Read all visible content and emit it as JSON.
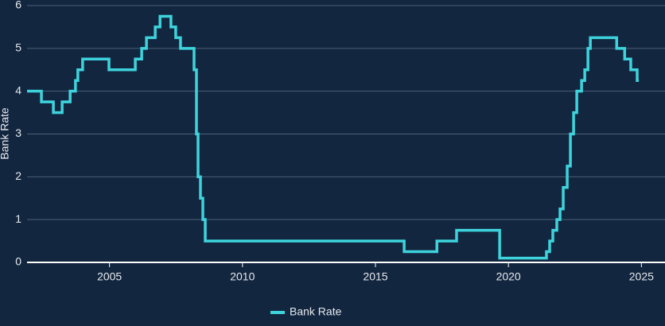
{
  "chart_data": {
    "type": "line",
    "step": "after",
    "y_label": "Bank Rate",
    "xlim": [
      2001.9,
      2024.9
    ],
    "xticks": [
      2005,
      2010,
      2015,
      2020,
      2025
    ],
    "ylim": [
      0,
      6
    ],
    "yticks": [
      0,
      1,
      2,
      3,
      4,
      5,
      6
    ],
    "grid": true,
    "legend": "bottom",
    "series": [
      {
        "name": "Bank Rate",
        "color": "#3dd3dc",
        "x": [
          2001.9,
          2002.44,
          2002.89,
          2003.22,
          2003.52,
          2003.72,
          2003.81,
          2003.99,
          2004.98,
          2005.97,
          2006.21,
          2006.39,
          2006.72,
          2006.9,
          2007.31,
          2007.49,
          2007.67,
          2008.18,
          2008.27,
          2008.33,
          2008.42,
          2008.51,
          2008.6,
          2016.08,
          2017.31,
          2018.05,
          2019.67,
          2021.43,
          2021.55,
          2021.67,
          2021.82,
          2021.94,
          2022.06,
          2022.21,
          2022.33,
          2022.45,
          2022.57,
          2022.75,
          2022.87,
          2022.99,
          2023.08,
          2024.07,
          2024.37,
          2024.6,
          2024.84,
          2024.9
        ],
        "values": [
          4.0,
          3.75,
          3.5,
          3.75,
          4.0,
          4.25,
          4.5,
          4.75,
          4.5,
          4.75,
          5.0,
          5.25,
          5.5,
          5.75,
          5.5,
          5.25,
          5.0,
          4.5,
          3.0,
          2.0,
          1.5,
          1.0,
          0.5,
          0.25,
          0.5,
          0.75,
          0.1,
          0.25,
          0.5,
          0.75,
          1.0,
          1.25,
          1.75,
          2.25,
          3.0,
          3.5,
          4.0,
          4.25,
          4.5,
          5.0,
          5.25,
          5.0,
          4.75,
          4.5,
          4.25,
          4.25
        ]
      }
    ]
  }
}
